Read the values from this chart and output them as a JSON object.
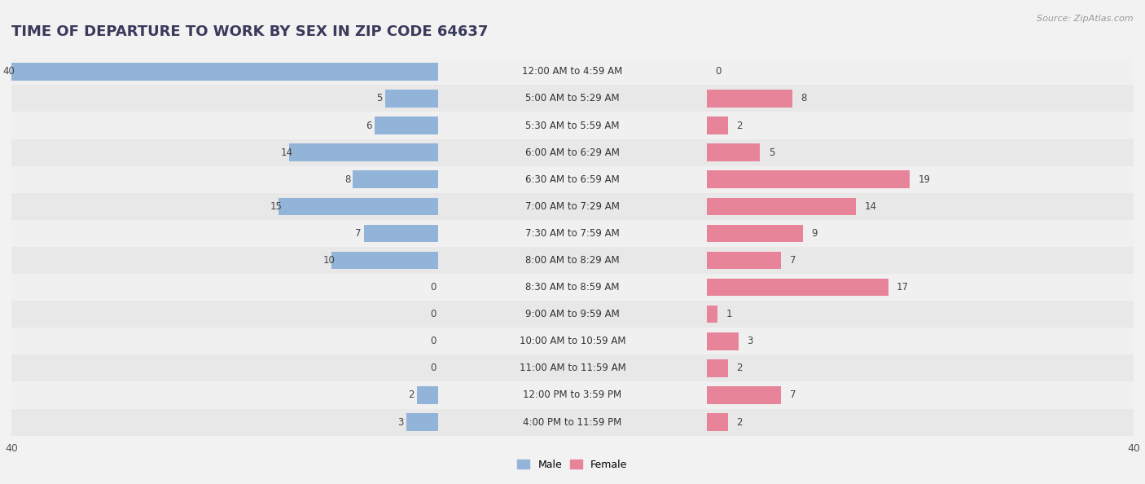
{
  "title": "TIME OF DEPARTURE TO WORK BY SEX IN ZIP CODE 64637",
  "source": "Source: ZipAtlas.com",
  "categories": [
    "12:00 AM to 4:59 AM",
    "5:00 AM to 5:29 AM",
    "5:30 AM to 5:59 AM",
    "6:00 AM to 6:29 AM",
    "6:30 AM to 6:59 AM",
    "7:00 AM to 7:29 AM",
    "7:30 AM to 7:59 AM",
    "8:00 AM to 8:29 AM",
    "8:30 AM to 8:59 AM",
    "9:00 AM to 9:59 AM",
    "10:00 AM to 10:59 AM",
    "11:00 AM to 11:59 AM",
    "12:00 PM to 3:59 PM",
    "4:00 PM to 11:59 PM"
  ],
  "male_values": [
    40,
    5,
    6,
    14,
    8,
    15,
    7,
    10,
    0,
    0,
    0,
    0,
    2,
    3
  ],
  "female_values": [
    0,
    8,
    2,
    5,
    19,
    14,
    9,
    7,
    17,
    1,
    3,
    2,
    7,
    2
  ],
  "male_color": "#92b4d9",
  "female_color": "#e8849a",
  "axis_max": 40,
  "row_colors": [
    "#f0f0f0",
    "#e8e8e8"
  ],
  "title_color": "#3a3a5c",
  "title_fontsize": 13,
  "label_fontsize": 8.5,
  "value_fontsize": 8.5,
  "source_fontsize": 8,
  "legend_male": "Male",
  "legend_female": "Female"
}
